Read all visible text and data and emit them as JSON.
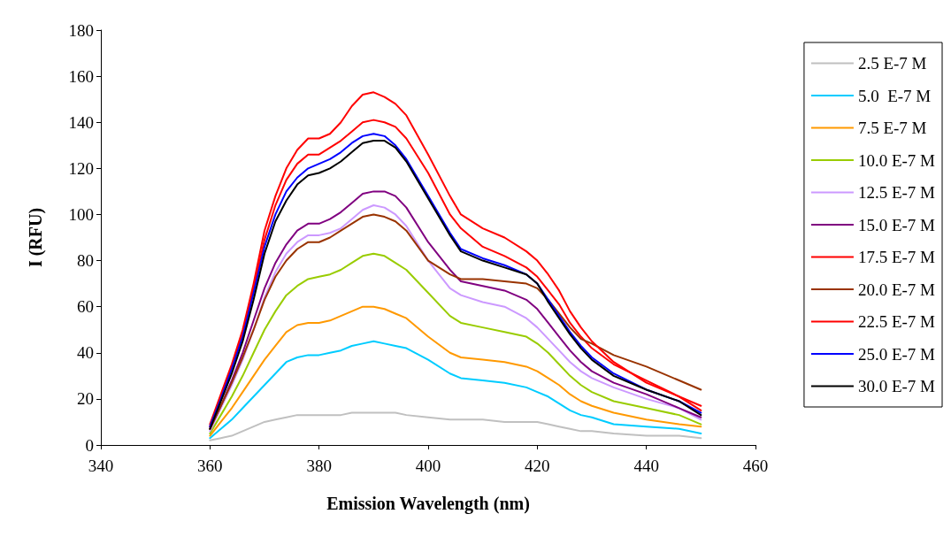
{
  "chart_data": {
    "type": "line",
    "xlabel": "Emission Wavelength (nm)",
    "ylabel": "I (RFU)",
    "x": [
      360,
      362,
      364,
      366,
      368,
      370,
      372,
      374,
      376,
      378,
      380,
      382,
      384,
      386,
      388,
      390,
      392,
      394,
      396,
      400,
      404,
      406,
      410,
      414,
      418,
      420,
      422,
      424,
      426,
      428,
      430,
      434,
      440,
      446,
      450
    ],
    "xlim": [
      340,
      460
    ],
    "xticks": [
      340,
      360,
      380,
      400,
      420,
      440,
      460
    ],
    "ylim": [
      0,
      180
    ],
    "yticks": [
      0,
      20,
      40,
      60,
      80,
      100,
      120,
      140,
      160,
      180
    ],
    "grid": false,
    "legend": "right",
    "marker": "none",
    "line_style": "solid",
    "series": [
      {
        "name": "2.5 E-7 M",
        "color": "#c0c0c0",
        "values": [
          2,
          3,
          4,
          6,
          8,
          10,
          11,
          12,
          13,
          13,
          13,
          13,
          13,
          14,
          14,
          14,
          14,
          14,
          13,
          12,
          11,
          11,
          11,
          10,
          10,
          10,
          9,
          8,
          7,
          6,
          6,
          5,
          4,
          4,
          3
        ]
      },
      {
        "name": "5.0  E-7 M",
        "color": "#00ccff",
        "values": [
          3,
          7,
          11,
          16,
          21,
          26,
          31,
          36,
          38,
          39,
          39,
          40,
          41,
          43,
          44,
          45,
          44,
          43,
          42,
          37,
          31,
          29,
          28,
          27,
          25,
          23,
          21,
          18,
          15,
          13,
          12,
          9,
          8,
          7,
          5
        ]
      },
      {
        "name": "7.5 E-7 M",
        "color": "#ff9900",
        "values": [
          4,
          10,
          16,
          23,
          30,
          37,
          43,
          49,
          52,
          53,
          53,
          54,
          56,
          58,
          60,
          60,
          59,
          57,
          55,
          47,
          40,
          38,
          37,
          36,
          34,
          32,
          29,
          26,
          22,
          19,
          17,
          14,
          11,
          9,
          8
        ]
      },
      {
        "name": "10.0 E-7 M",
        "color": "#99cc00",
        "values": [
          5,
          13,
          21,
          30,
          40,
          50,
          58,
          65,
          69,
          72,
          73,
          74,
          76,
          79,
          82,
          83,
          82,
          79,
          76,
          66,
          56,
          53,
          51,
          49,
          47,
          44,
          40,
          35,
          30,
          26,
          23,
          19,
          16,
          13,
          9
        ]
      },
      {
        "name": "12.5 E-7 M",
        "color": "#cc99ff",
        "values": [
          6,
          16,
          26,
          37,
          50,
          64,
          75,
          83,
          88,
          91,
          91,
          92,
          94,
          98,
          102,
          104,
          103,
          100,
          95,
          80,
          68,
          65,
          62,
          60,
          55,
          51,
          46,
          41,
          36,
          32,
          29,
          25,
          20,
          16,
          11
        ]
      },
      {
        "name": "15.0 E-7 M",
        "color": "#800080",
        "values": [
          7,
          17,
          28,
          40,
          54,
          68,
          79,
          87,
          93,
          96,
          96,
          98,
          101,
          105,
          109,
          110,
          110,
          108,
          103,
          88,
          76,
          71,
          69,
          67,
          63,
          59,
          53,
          47,
          41,
          36,
          32,
          27,
          22,
          16,
          12
        ]
      },
      {
        "name": "17.5 E-7 M",
        "color": "#ff0000",
        "values": [
          8,
          21,
          34,
          48,
          68,
          89,
          104,
          115,
          122,
          126,
          126,
          129,
          132,
          136,
          140,
          141,
          140,
          138,
          133,
          118,
          100,
          94,
          86,
          82,
          77,
          73,
          67,
          61,
          53,
          47,
          42,
          35,
          28,
          21,
          15
        ]
      },
      {
        "name": "20.0 E-7 M",
        "color": "#993300",
        "values": [
          7,
          17,
          27,
          38,
          50,
          63,
          73,
          80,
          85,
          88,
          88,
          90,
          93,
          96,
          99,
          100,
          99,
          97,
          93,
          80,
          74,
          72,
          72,
          71,
          70,
          68,
          63,
          57,
          51,
          46,
          44,
          39,
          34,
          28,
          24
        ]
      },
      {
        "name": "22.5 E-7 M",
        "color": "#ff0000",
        "values": [
          9,
          22,
          35,
          50,
          70,
          93,
          108,
          120,
          128,
          133,
          133,
          135,
          140,
          147,
          152,
          153,
          151,
          148,
          143,
          126,
          108,
          100,
          94,
          90,
          84,
          80,
          74,
          67,
          58,
          51,
          45,
          36,
          27,
          21,
          17
        ]
      },
      {
        "name": "25.0 E-7 M",
        "color": "#0000ff",
        "values": [
          8,
          20,
          33,
          47,
          66,
          86,
          100,
          110,
          116,
          120,
          122,
          124,
          127,
          131,
          134,
          135,
          134,
          130,
          124,
          108,
          92,
          85,
          81,
          78,
          74,
          70,
          63,
          56,
          49,
          43,
          38,
          31,
          24,
          19,
          14
        ]
      },
      {
        "name": "30.0 E-7 M",
        "color": "#000000",
        "values": [
          7,
          19,
          31,
          45,
          63,
          83,
          97,
          106,
          113,
          117,
          118,
          120,
          123,
          127,
          131,
          132,
          132,
          129,
          123,
          107,
          91,
          84,
          80,
          77,
          74,
          70,
          62,
          55,
          48,
          42,
          37,
          30,
          24,
          19,
          13
        ]
      }
    ]
  }
}
